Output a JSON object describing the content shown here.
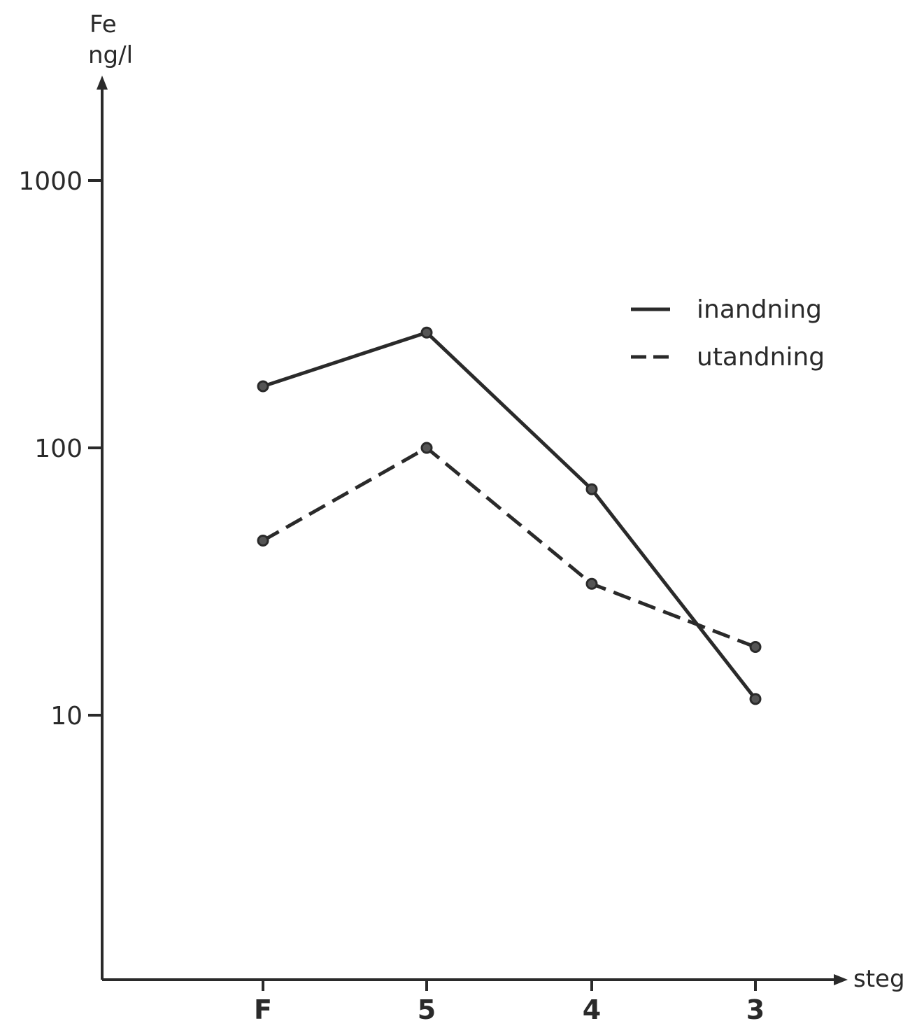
{
  "chart_data": {
    "type": "line",
    "title": "",
    "ylabel": "Fe ng/l",
    "ylabel_lines": [
      "Fe",
      "ng/l"
    ],
    "xlabel": "steg",
    "yscale": "log",
    "ylim": [
      1.5,
      2000
    ],
    "yticks": [
      {
        "value": 1000,
        "label": "1000"
      },
      {
        "value": 100,
        "label": "100"
      },
      {
        "value": 10,
        "label": "10"
      }
    ],
    "categories": [
      "F",
      "5",
      "4",
      "3"
    ],
    "grid": false,
    "legend_position": "top-right",
    "series": [
      {
        "name": "inandning",
        "style": "solid",
        "values": [
          170,
          270,
          70,
          11.5
        ]
      },
      {
        "name": "utandning",
        "style": "dashed",
        "values": [
          45,
          100,
          31,
          18
        ]
      }
    ],
    "colors": {
      "ink": "#2a2a2a",
      "background": "#ffffff"
    }
  }
}
